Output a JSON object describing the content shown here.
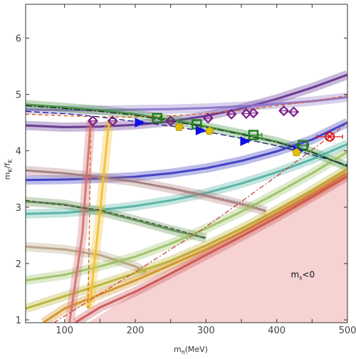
{
  "chart_data": {
    "type": "line",
    "title": "",
    "xlabel_main": "m",
    "xlabel_sub": "π",
    "xlabel_unit": "(MeV)",
    "ylabel_main": "m",
    "ylabel_sub1": "K",
    "ylabel_mid": "/f",
    "ylabel_sub2": "K",
    "xlim": [
      45,
      500
    ],
    "ylim": [
      0.95,
      6.6
    ],
    "xticks": [
      100,
      150,
      200,
      250,
      300,
      350,
      400,
      450,
      500
    ],
    "xtick_labels": [
      "100",
      "",
      "200",
      "",
      "300",
      "",
      "400",
      "",
      "500"
    ],
    "yticks": [
      1,
      2,
      3,
      4,
      5,
      6
    ],
    "ytick_labels": [
      "1",
      "2",
      "3",
      "4",
      "5",
      "6"
    ],
    "grid": false,
    "legend": "none",
    "annotation": {
      "text_main": "m",
      "text_sub": "s",
      "text_rest": "<0",
      "x": 420,
      "y": 1.75
    },
    "excluded_region": {
      "label": "m_s<0",
      "boundary": [
        [
          133,
          0.95
        ],
        [
          200,
          1.48
        ],
        [
          300,
          2.22
        ],
        [
          400,
          2.96
        ],
        [
          500,
          3.7
        ]
      ],
      "color": "#f6d2d2"
    },
    "bands": [
      {
        "color": "#5e2d8c",
        "points": [
          [
            45,
            4.45
          ],
          [
            100,
            4.42
          ],
          [
            150,
            4.43
          ],
          [
            200,
            4.46
          ],
          [
            250,
            4.52
          ],
          [
            300,
            4.62
          ],
          [
            350,
            4.75
          ],
          [
            400,
            4.92
          ],
          [
            450,
            5.12
          ],
          [
            500,
            5.35
          ]
        ]
      },
      {
        "color": "#8a6fc9",
        "points": [
          [
            45,
            4.73
          ],
          [
            100,
            4.72
          ],
          [
            150,
            4.72
          ],
          [
            200,
            4.73
          ],
          [
            250,
            4.74
          ],
          [
            300,
            4.76
          ],
          [
            350,
            4.79
          ],
          [
            400,
            4.83
          ],
          [
            450,
            4.88
          ],
          [
            500,
            4.95
          ]
        ]
      },
      {
        "color": "#3e8f3e",
        "points": [
          [
            45,
            4.82
          ],
          [
            100,
            4.77
          ],
          [
            150,
            4.72
          ],
          [
            200,
            4.65
          ],
          [
            250,
            4.55
          ],
          [
            300,
            4.43
          ],
          [
            350,
            4.3
          ],
          [
            400,
            4.16
          ],
          [
            450,
            3.98
          ],
          [
            500,
            3.72
          ]
        ]
      },
      {
        "color": "#3535c0",
        "points": [
          [
            45,
            3.48
          ],
          [
            100,
            3.49
          ],
          [
            150,
            3.51
          ],
          [
            200,
            3.54
          ],
          [
            250,
            3.6
          ],
          [
            300,
            3.69
          ],
          [
            350,
            3.82
          ],
          [
            400,
            3.99
          ],
          [
            450,
            4.2
          ],
          [
            500,
            4.5
          ]
        ]
      },
      {
        "color": "#4fb0a0",
        "points": [
          [
            45,
            2.88
          ],
          [
            100,
            2.9
          ],
          [
            150,
            2.95
          ],
          [
            200,
            3.02
          ],
          [
            250,
            3.12
          ],
          [
            300,
            3.25
          ],
          [
            350,
            3.42
          ],
          [
            400,
            3.62
          ],
          [
            450,
            3.85
          ],
          [
            500,
            4.12
          ]
        ]
      },
      {
        "color": "#b07d7d",
        "points": [
          [
            45,
            3.65
          ],
          [
            100,
            3.6
          ],
          [
            150,
            3.53
          ],
          [
            200,
            3.45
          ],
          [
            250,
            3.33
          ],
          [
            300,
            3.2
          ],
          [
            350,
            3.05
          ],
          [
            385,
            2.93
          ]
        ]
      },
      {
        "color": "#5f8f4f",
        "points": [
          [
            45,
            3.1
          ],
          [
            100,
            3.05
          ],
          [
            150,
            2.93
          ],
          [
            200,
            2.77
          ],
          [
            250,
            2.6
          ],
          [
            300,
            2.45
          ]
        ]
      },
      {
        "color": "#b5a07f",
        "points": [
          [
            45,
            2.3
          ],
          [
            100,
            2.25
          ],
          [
            150,
            2.15
          ],
          [
            200,
            1.95
          ],
          [
            215,
            1.85
          ]
        ]
      },
      {
        "color": "#9ac060",
        "points": [
          [
            45,
            1.7
          ],
          [
            100,
            1.8
          ],
          [
            150,
            1.95
          ],
          [
            200,
            2.12
          ],
          [
            250,
            2.35
          ],
          [
            300,
            2.62
          ],
          [
            350,
            2.92
          ],
          [
            400,
            3.25
          ],
          [
            450,
            3.6
          ],
          [
            500,
            3.98
          ]
        ]
      },
      {
        "color": "#b8b030",
        "points": [
          [
            45,
            1.2
          ],
          [
            100,
            1.42
          ],
          [
            150,
            1.62
          ],
          [
            200,
            1.83
          ],
          [
            250,
            2.05
          ],
          [
            300,
            2.32
          ],
          [
            350,
            2.62
          ],
          [
            400,
            2.95
          ],
          [
            450,
            3.3
          ],
          [
            500,
            3.68
          ]
        ]
      },
      {
        "color": "#d09020",
        "points": [
          [
            70,
            0.95
          ],
          [
            100,
            1.2
          ],
          [
            150,
            1.45
          ],
          [
            200,
            1.7
          ],
          [
            250,
            1.97
          ],
          [
            300,
            2.25
          ],
          [
            350,
            2.55
          ],
          [
            400,
            2.88
          ],
          [
            450,
            3.22
          ],
          [
            500,
            3.6
          ]
        ]
      },
      {
        "color": "#cc5050",
        "points": [
          [
            115,
            0.95
          ],
          [
            150,
            1.22
          ],
          [
            200,
            1.5
          ],
          [
            250,
            1.82
          ],
          [
            300,
            2.15
          ],
          [
            350,
            2.48
          ],
          [
            400,
            2.82
          ],
          [
            450,
            3.18
          ],
          [
            500,
            3.55
          ]
        ]
      },
      {
        "color": "#d07070",
        "points": [
          [
            107,
            0.95
          ],
          [
            125,
            2.5
          ],
          [
            137,
            4.53
          ]
        ]
      },
      {
        "color": "#f0c030",
        "points": [
          [
            135,
            1.2
          ],
          [
            150,
            2.9
          ],
          [
            163,
            4.53
          ]
        ]
      }
    ],
    "dashed_lines": [
      {
        "color": "#e06010",
        "dash": "5,4",
        "points": [
          [
            45,
            4.65
          ],
          [
            100,
            4.62
          ],
          [
            150,
            4.6
          ],
          [
            200,
            4.6
          ],
          [
            250,
            4.62
          ],
          [
            300,
            4.66
          ],
          [
            350,
            4.72
          ],
          [
            400,
            4.8
          ],
          [
            450,
            4.88
          ],
          [
            500,
            4.98
          ]
        ]
      },
      {
        "color": "#1a1a8a",
        "dash": "8,4",
        "points": [
          [
            45,
            4.7
          ],
          [
            100,
            4.66
          ],
          [
            150,
            4.6
          ],
          [
            200,
            4.52
          ],
          [
            250,
            4.44
          ],
          [
            300,
            4.34
          ],
          [
            350,
            4.22
          ],
          [
            400,
            4.09
          ],
          [
            450,
            3.93
          ],
          [
            500,
            3.75
          ]
        ]
      },
      {
        "color": "#222222",
        "dash": "9,3,2,3",
        "points": [
          [
            45,
            4.8
          ],
          [
            100,
            4.75
          ],
          [
            150,
            4.7
          ],
          [
            200,
            4.63
          ],
          [
            250,
            4.53
          ],
          [
            300,
            4.42
          ],
          [
            350,
            4.29
          ],
          [
            400,
            4.15
          ],
          [
            450,
            3.97
          ],
          [
            500,
            3.73
          ]
        ]
      },
      {
        "color": "#d04040",
        "dash": "7,3,2,3",
        "points": [
          [
            85,
            0.95
          ],
          [
            200,
            1.85
          ],
          [
            300,
            2.65
          ],
          [
            400,
            3.55
          ],
          [
            480,
            4.3
          ],
          [
            500,
            4.5
          ]
        ]
      },
      {
        "color": "#e06010",
        "dash": "5,3",
        "points": [
          [
            133,
            1.2
          ],
          [
            135,
            2.5
          ],
          [
            137,
            4.5
          ]
        ]
      },
      {
        "color": "#777777",
        "dash": "2,2",
        "points": [
          [
            45,
            3.66
          ],
          [
            150,
            3.55
          ],
          [
            250,
            3.35
          ],
          [
            350,
            3.08
          ],
          [
            383,
            2.95
          ]
        ]
      },
      {
        "color": "#444444",
        "dash": "6,3",
        "points": [
          [
            45,
            3.12
          ],
          [
            150,
            2.95
          ],
          [
            250,
            2.63
          ],
          [
            300,
            2.45
          ]
        ]
      }
    ],
    "series": [
      {
        "name": "",
        "marker": "diamond",
        "color": "#7a1f8a",
        "x": [
          140,
          168,
          250,
          303,
          336,
          357,
          367,
          410,
          424
        ],
        "y": [
          4.53,
          4.53,
          4.53,
          4.58,
          4.65,
          4.66,
          4.67,
          4.71,
          4.69
        ],
        "xerr": [
          5,
          5,
          5,
          5,
          4,
          4,
          4,
          5,
          4
        ]
      },
      {
        "name": "",
        "marker": "square",
        "color": "#1f7a1f",
        "x": [
          231,
          287,
          367,
          437
        ],
        "y": [
          4.58,
          4.47,
          4.28,
          4.1
        ],
        "xerr": [
          4,
          6,
          12,
          8
        ]
      },
      {
        "name": "",
        "marker": "triangle",
        "color": "#1010e0",
        "x": [
          206,
          292,
          355,
          430
        ],
        "y": [
          4.5,
          4.36,
          4.17,
          4.0
        ],
        "xerr": [
          4,
          4,
          5,
          4
        ]
      },
      {
        "name": "",
        "marker": "pentagon",
        "color": "#e0c000",
        "x": [
          262,
          305,
          428
        ],
        "y": [
          4.42,
          4.35,
          3.97
        ],
        "xerr": [
          4,
          4,
          4
        ]
      },
      {
        "name": "",
        "marker": "circle-cross",
        "color": "#e01010",
        "x": [
          475
        ],
        "y": [
          4.25
        ],
        "xerr": [
          18
        ]
      }
    ]
  }
}
